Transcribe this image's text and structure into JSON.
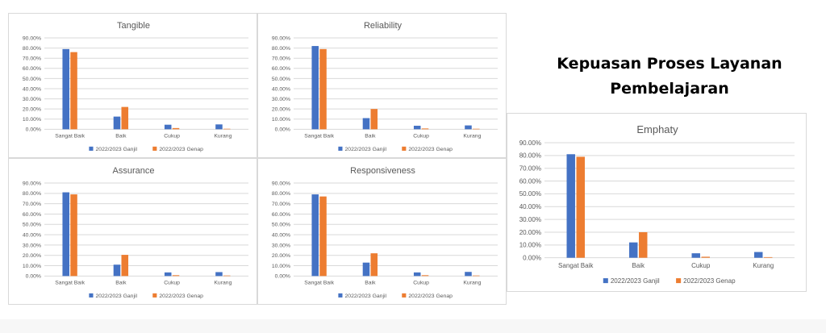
{
  "page_title": [
    "Kepuasan Proses Layanan",
    "Pembelajaran"
  ],
  "colors": {
    "ganjil": "#4472c4",
    "genap": "#ed7d31",
    "grid": "#d9d9d9",
    "text": "#595959"
  },
  "chart_data": [
    {
      "type": "bar",
      "title": "Tangible",
      "categories": [
        "Sangat Baik",
        "Baik",
        "Cukup",
        "Kurang"
      ],
      "yticks": [
        "90.00%",
        "80.00%",
        "70.00%",
        "60.00%",
        "50.00%",
        "40.00%",
        "30.00%",
        "20.00%",
        "10.00%",
        "0.00%"
      ],
      "ylim": [
        0,
        90
      ],
      "legend_position": "bottom",
      "series": [
        {
          "name": "2022/2023 Ganjil",
          "values": [
            79,
            12.5,
            4.5,
            4.8
          ]
        },
        {
          "name": "2022/2023 Genap",
          "values": [
            76,
            22,
            1.2,
            0.5
          ]
        }
      ]
    },
    {
      "type": "bar",
      "title": "Reliability",
      "categories": [
        "Sangat Baik",
        "Baik",
        "Cukup",
        "Kurang"
      ],
      "yticks": [
        "90.00%",
        "80.00%",
        "70.00%",
        "60.00%",
        "50.00%",
        "40.00%",
        "30.00%",
        "20.00%",
        "10.00%",
        "0.00%"
      ],
      "ylim": [
        0,
        90
      ],
      "legend_position": "bottom",
      "series": [
        {
          "name": "2022/2023 Ganjil",
          "values": [
            82,
            11,
            3.5,
            3.8
          ]
        },
        {
          "name": "2022/2023 Genap",
          "values": [
            79,
            20,
            0.8,
            0.5
          ]
        }
      ]
    },
    {
      "type": "bar",
      "title": "Assurance",
      "categories": [
        "Sangat Baik",
        "Baik",
        "Cukup",
        "Kurang"
      ],
      "yticks": [
        "90.00%",
        "80.00%",
        "70.00%",
        "60.00%",
        "50.00%",
        "40.00%",
        "30.00%",
        "20.00%",
        "10.00%",
        "0.00%"
      ],
      "ylim": [
        0,
        90
      ],
      "legend_position": "bottom",
      "series": [
        {
          "name": "2022/2023 Ganjil",
          "values": [
            81,
            11,
            3.5,
            3.8
          ]
        },
        {
          "name": "2022/2023 Genap",
          "values": [
            79,
            20.5,
            0.8,
            0.5
          ]
        }
      ]
    },
    {
      "type": "bar",
      "title": "Responsiveness",
      "categories": [
        "Sangat Baik",
        "Baik",
        "Cukup",
        "Kurang"
      ],
      "yticks": [
        "90.00%",
        "80.00%",
        "70.00%",
        "60.00%",
        "50.00%",
        "40.00%",
        "30.00%",
        "20.00%",
        "10.00%",
        "0.00%"
      ],
      "ylim": [
        0,
        90
      ],
      "legend_position": "bottom",
      "series": [
        {
          "name": "2022/2023 Ganjil",
          "values": [
            79,
            13,
            3.5,
            4
          ]
        },
        {
          "name": "2022/2023 Genap",
          "values": [
            77,
            22,
            0.8,
            0.5
          ]
        }
      ]
    },
    {
      "type": "bar",
      "title": "Emphaty",
      "categories": [
        "Sangat Baik",
        "Baik",
        "Cukup",
        "Kurang"
      ],
      "yticks": [
        "90.00%",
        "80.00%",
        "70.00%",
        "60.00%",
        "50.00%",
        "40.00%",
        "30.00%",
        "20.00%",
        "10.00%",
        "0.00%"
      ],
      "ylim": [
        0,
        90
      ],
      "legend_position": "bottom",
      "series": [
        {
          "name": "2022/2023 Ganjil",
          "values": [
            81,
            12,
            3.5,
            4.5
          ]
        },
        {
          "name": "2022/2023 Genap",
          "values": [
            79,
            20,
            0.8,
            0.5
          ]
        }
      ]
    }
  ]
}
